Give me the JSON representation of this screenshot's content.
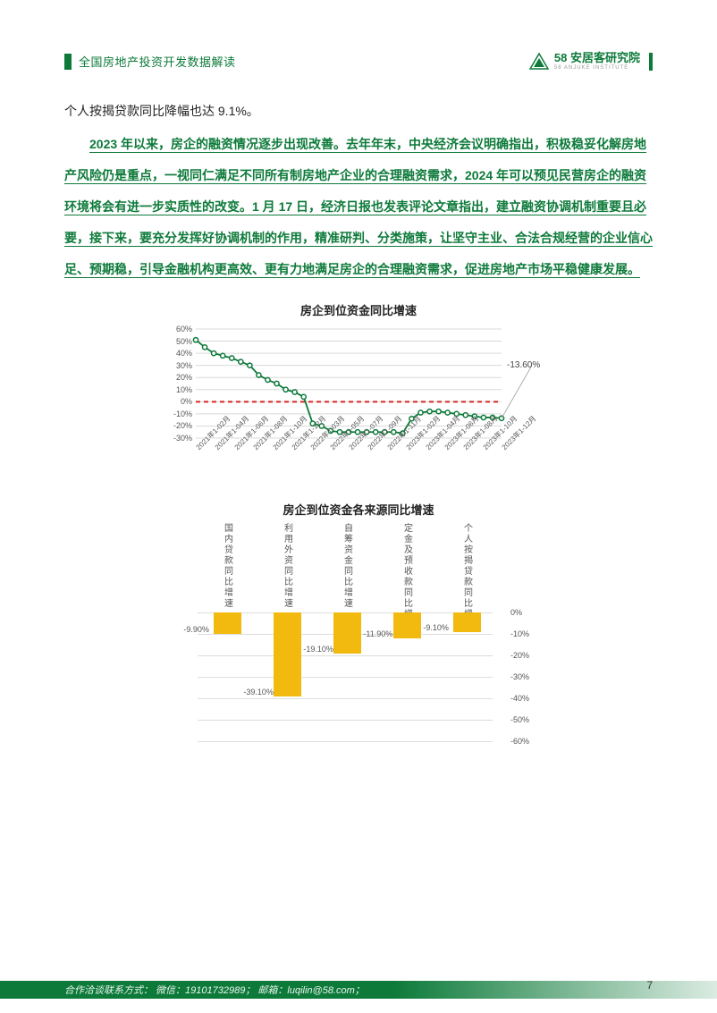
{
  "header": {
    "doc_title": "全国房地产投资开发数据解读",
    "logo_main": "58 安居客研究院",
    "logo_sub": "58 ANJUKE INSTITUTE",
    "logo_colors": {
      "brand_green": "#0d7a3a"
    }
  },
  "text": {
    "line_top": "个人按揭贷款同比降幅也达 9.1%。",
    "green_paragraph": "2023 年以来，房企的融资情况逐步出现改善。去年年末，中央经济会议明确指出，积极稳妥化解房地产风险仍是重点，一视同仁满足不同所有制房地产企业的合理融资需求，2024 年可以预见民营房企的融资环境将会有进一步实质性的改变。1 月 17 日，经济日报也发表评论文章指出，建立融资协调机制重要且必要，接下来，要充分发挥好协调机制的作用，精准研判、分类施策，让坚守主业、合法合规经营的企业信心足、预期稳，引导金融机构更高效、更有力地满足房企的合理融资需求，促进房地产市场平稳健康发展。"
  },
  "chart_line": {
    "type": "line",
    "title": "房企到位资金同比增速",
    "ylim": [
      -30,
      60
    ],
    "yticks": [
      -30,
      -20,
      -10,
      0,
      10,
      20,
      30,
      40,
      50,
      60
    ],
    "ytick_fmt_suffix": "%",
    "x_labels": [
      "2021年1-02月",
      "2021年1-04月",
      "2021年1-06月",
      "2021年1-08月",
      "2021年1-10月",
      "2021年1-12月",
      "2022年1-03月",
      "2022年1-05月",
      "2022年1-07月",
      "2022年1-09月",
      "2022年1-11月",
      "2023年1-02月",
      "2023年1-04月",
      "2023年1-06月",
      "2023年1-08月",
      "2023年1-10月",
      "2023年1-12月"
    ],
    "values": [
      51,
      45,
      40,
      38,
      36,
      33,
      30,
      22,
      18,
      15,
      10,
      8,
      4,
      -18,
      -20,
      -24,
      -25,
      -25,
      -25,
      -25,
      -25,
      -25,
      -25,
      -26,
      -14,
      -9,
      -8,
      -8,
      -9,
      -10,
      -11,
      -12,
      -13,
      -13,
      -13.6
    ],
    "callout_label": "-13.60%",
    "line_color": "#0d7a3a",
    "marker_fill": "#ffffff",
    "marker_stroke": "#0d7a3a",
    "zero_line_color": "#d62828",
    "grid_color": "#d9d9d9",
    "background_color": "#ffffff",
    "axis_fontsize": 9,
    "title_fontsize": 13
  },
  "chart_bar": {
    "type": "bar",
    "title": "房企到位资金各来源同比增速",
    "categories": [
      "国内贷款同比增速",
      "利用外资同比增速",
      "自筹资金同比增速",
      "定金及预收款同比增速",
      "个人按揭贷款同比增速"
    ],
    "values": [
      -9.9,
      -39.1,
      -19.1,
      -11.9,
      -9.1
    ],
    "value_labels": [
      "-9.90%",
      "-39.10%",
      "-19.10%",
      "-11.90%",
      "-9.10%"
    ],
    "ylim": [
      -60,
      0
    ],
    "yticks": [
      0,
      -10,
      -20,
      -30,
      -40,
      -50,
      -60
    ],
    "bar_color": "#f2b90f",
    "grid_color": "#dddddd",
    "label_fontsize": 10,
    "title_fontsize": 13,
    "background_color": "#ffffff",
    "bar_width_ratio": 0.45
  },
  "footer": {
    "contact": "合作洽谈联系方式：  微信：19101732989；  邮箱：luqilin@58.com；",
    "page_number": "7"
  }
}
